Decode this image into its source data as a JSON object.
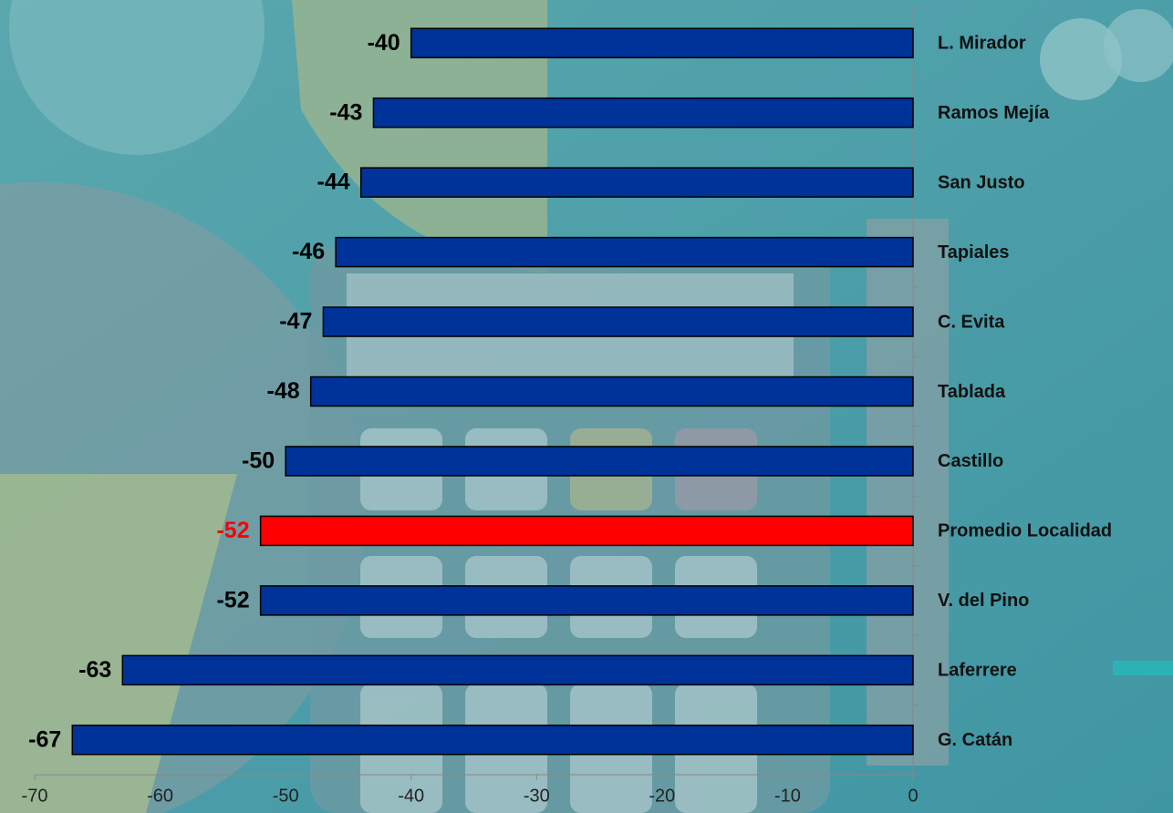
{
  "chart_data": {
    "type": "bar",
    "orientation": "horizontal",
    "categories": [
      "L. Mirador",
      "Ramos Mejía",
      "San Justo",
      "Tapiales",
      "C. Evita",
      "Tablada",
      "Castillo",
      "Promedio Localidad",
      "V. del Pino",
      "Laferrere",
      "G. Catán"
    ],
    "values": [
      -40,
      -43,
      -44,
      -46,
      -47,
      -48,
      -50,
      -52,
      -52,
      -63,
      -67
    ],
    "colors": [
      "#003399",
      "#003399",
      "#003399",
      "#003399",
      "#003399",
      "#003399",
      "#003399",
      "#ff0000",
      "#003399",
      "#003399",
      "#003399"
    ],
    "label_colors": [
      "#000000",
      "#000000",
      "#000000",
      "#000000",
      "#000000",
      "#000000",
      "#000000",
      "#ff0000",
      "#000000",
      "#000000",
      "#000000"
    ],
    "xlim": [
      -70,
      0
    ],
    "xticks": [
      -70,
      -60,
      -50,
      -40,
      -30,
      -20,
      -10,
      0
    ]
  }
}
